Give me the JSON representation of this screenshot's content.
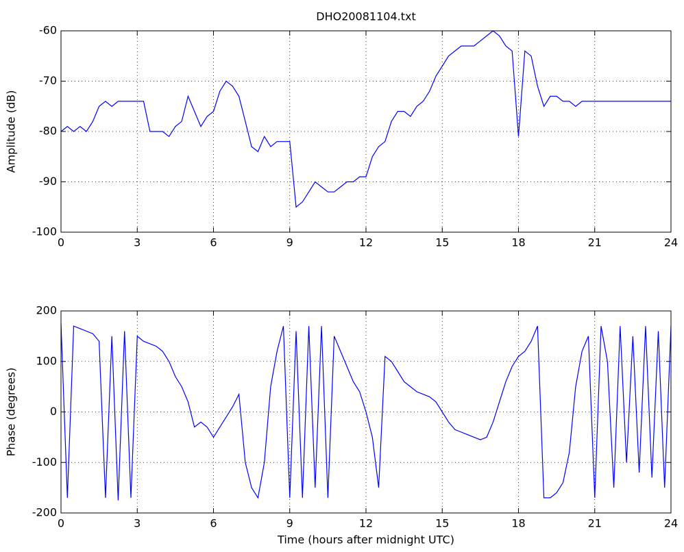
{
  "chart_data": [
    {
      "type": "line",
      "title": "DHO20081104.txt",
      "ylabel": "Amplitude (dB)",
      "x": [
        0,
        0.25,
        0.5,
        0.75,
        1,
        1.25,
        1.5,
        1.75,
        2,
        2.25,
        2.5,
        2.75,
        3,
        3.25,
        3.5,
        3.75,
        4,
        4.25,
        4.5,
        4.75,
        5,
        5.25,
        5.5,
        5.75,
        6,
        6.25,
        6.5,
        6.75,
        7,
        7.25,
        7.5,
        7.75,
        8,
        8.25,
        8.5,
        8.75,
        9,
        9.25,
        9.5,
        9.75,
        10,
        10.25,
        10.5,
        10.75,
        11,
        11.25,
        11.5,
        11.75,
        12,
        12.25,
        12.5,
        12.75,
        13,
        13.25,
        13.5,
        13.75,
        14,
        14.25,
        14.5,
        14.75,
        15,
        15.25,
        15.5,
        15.75,
        16,
        16.25,
        16.5,
        16.75,
        17,
        17.25,
        17.5,
        17.75,
        18,
        18.25,
        18.5,
        18.75,
        19,
        19.25,
        19.5,
        19.75,
        20,
        20.25,
        20.5,
        20.75,
        21,
        21.25,
        21.5,
        21.75,
        22,
        22.25,
        22.5,
        22.75,
        23,
        23.25,
        23.5,
        23.75,
        24
      ],
      "series": [
        {
          "color": "#0000ff",
          "values": [
            -80,
            -79,
            -80,
            -79,
            -80,
            -78,
            -75,
            -74,
            -75,
            -74,
            -74,
            -74,
            -74,
            -74,
            -80,
            -80,
            -80,
            -81,
            -79,
            -78,
            -73,
            -76,
            -79,
            -77,
            -76,
            -72,
            -70,
            -71,
            -73,
            -78,
            -83,
            -84,
            -81,
            -83,
            -82,
            -82,
            -82,
            -95,
            -94,
            -92,
            -90,
            -91,
            -92,
            -92,
            -91,
            -90,
            -90,
            -89,
            -89,
            -85,
            -83,
            -82,
            -78,
            -76,
            -76,
            -77,
            -75,
            -74,
            -72,
            -69,
            -67,
            -65,
            -64,
            -63,
            -63,
            -63,
            -62,
            -61,
            -60,
            -61,
            -63,
            -64,
            -81,
            -64,
            -65,
            -71,
            -75,
            -73,
            -73,
            -74,
            -74,
            -75,
            -74,
            -74,
            -74,
            -74,
            -74,
            -74,
            -74,
            -74,
            -74,
            -74,
            -74,
            -74,
            -74,
            -74,
            -74
          ]
        }
      ],
      "xlim": [
        0,
        24
      ],
      "ylim": [
        -100,
        -60
      ],
      "xticks": [
        0,
        3,
        6,
        9,
        12,
        15,
        18,
        21,
        24
      ],
      "yticks": [
        -100,
        -90,
        -80,
        -70,
        -60
      ],
      "grid": true
    },
    {
      "type": "line",
      "xlabel": "Time (hours after midnight UTC)",
      "ylabel": "Phase (degrees)",
      "x": [
        0,
        0.25,
        0.5,
        0.75,
        1,
        1.25,
        1.5,
        1.75,
        2,
        2.25,
        2.5,
        2.75,
        3,
        3.25,
        3.5,
        3.75,
        4,
        4.25,
        4.5,
        4.75,
        5,
        5.25,
        5.5,
        5.75,
        6,
        6.25,
        6.5,
        6.75,
        7,
        7.25,
        7.5,
        7.75,
        8,
        8.25,
        8.5,
        8.75,
        9,
        9.25,
        9.5,
        9.75,
        10,
        10.25,
        10.5,
        10.75,
        11,
        11.25,
        11.5,
        11.75,
        12,
        12.25,
        12.5,
        12.75,
        13,
        13.25,
        13.5,
        13.75,
        14,
        14.25,
        14.5,
        14.75,
        15,
        15.25,
        15.5,
        15.75,
        16,
        16.25,
        16.5,
        16.75,
        17,
        17.25,
        17.5,
        17.75,
        18,
        18.25,
        18.5,
        18.75,
        19,
        19.25,
        19.5,
        19.75,
        20,
        20.25,
        20.5,
        20.75,
        21,
        21.25,
        21.5,
        21.75,
        22,
        22.25,
        22.5,
        22.75,
        23,
        23.25,
        23.5,
        23.75,
        24
      ],
      "series": [
        {
          "color": "#0000ff",
          "values": [
            175,
            -170,
            170,
            165,
            160,
            155,
            140,
            -170,
            150,
            -175,
            160,
            -170,
            150,
            140,
            135,
            130,
            120,
            100,
            70,
            50,
            20,
            -30,
            -20,
            -30,
            -50,
            -30,
            -10,
            10,
            35,
            -100,
            -150,
            -170,
            -100,
            50,
            120,
            170,
            -170,
            160,
            -170,
            170,
            -150,
            170,
            -170,
            150,
            120,
            90,
            60,
            40,
            0,
            -50,
            -150,
            110,
            100,
            80,
            60,
            50,
            40,
            35,
            30,
            20,
            0,
            -20,
            -35,
            -40,
            -45,
            -50,
            -55,
            -50,
            -20,
            20,
            60,
            90,
            110,
            120,
            140,
            170,
            -170,
            -170,
            -160,
            -140,
            -80,
            50,
            120,
            150,
            -170,
            170,
            100,
            -150,
            170,
            -100,
            150,
            -120,
            170,
            -130,
            160,
            -150,
            170
          ]
        }
      ],
      "xlim": [
        0,
        24
      ],
      "ylim": [
        -200,
        200
      ],
      "xticks": [
        0,
        3,
        6,
        9,
        12,
        15,
        18,
        21,
        24
      ],
      "yticks": [
        -200,
        -100,
        0,
        100,
        200
      ],
      "grid": true
    }
  ]
}
